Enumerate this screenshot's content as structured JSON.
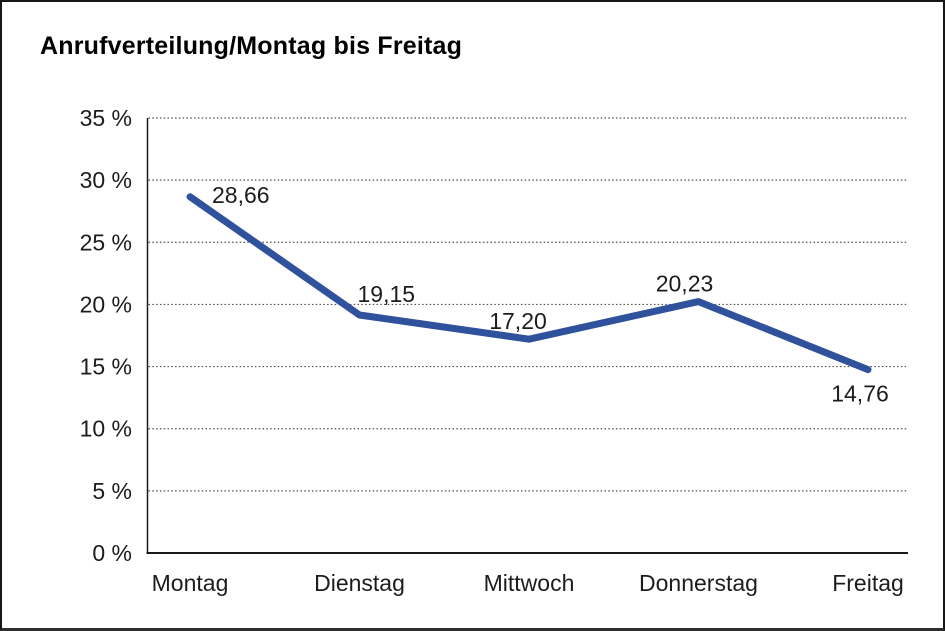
{
  "chart_data": {
    "type": "line",
    "title": "Anrufverteilung/Montag bis Freitag",
    "categories": [
      "Montag",
      "Dienstag",
      "Mittwoch",
      "Donnerstag",
      "Freitag"
    ],
    "values": [
      28.66,
      19.15,
      17.2,
      20.23,
      14.76
    ],
    "value_labels": [
      "28,66",
      "19,15",
      "17,20",
      "20,23",
      "14,76"
    ],
    "y_tick_values": [
      0,
      5,
      10,
      15,
      20,
      25,
      30,
      35
    ],
    "y_tick_labels": [
      "0 %",
      "5 %",
      "10 %",
      "15 %",
      "20 %",
      "25 %",
      "30 %",
      "35 %"
    ],
    "ylim": [
      0,
      35
    ],
    "xlabel": "",
    "ylabel": "",
    "grid": "horizontal-dotted",
    "legend": "none",
    "line_color": "#30519B",
    "text_color": "#1c1c1c",
    "grid_color": "#4d4d4d",
    "axis_color": "#1a1a1a",
    "background_color": "#ffffff"
  }
}
